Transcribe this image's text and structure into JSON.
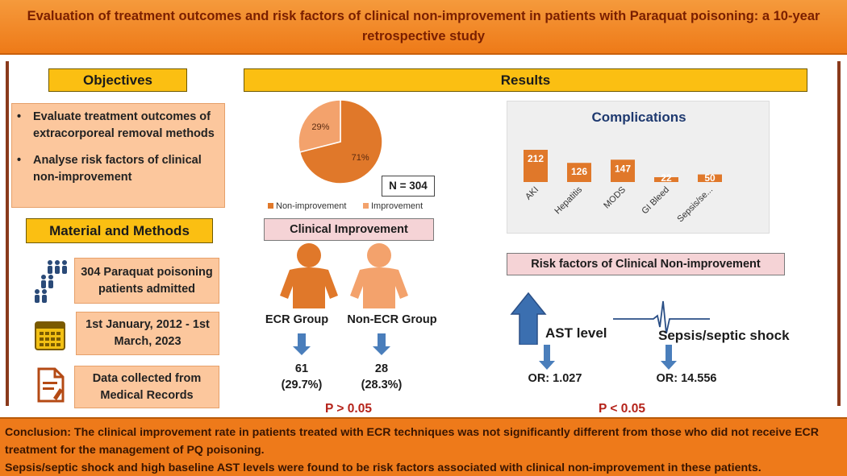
{
  "title": "Evaluation of treatment outcomes and risk factors of clinical non-improvement in patients with Paraquat poisoning: a 10-year retrospective study",
  "objectives": {
    "header": "Objectives",
    "items": [
      "Evaluate treatment outcomes of extracorporeal removal methods",
      "Analyse risk factors of clinical non-improvement"
    ]
  },
  "methods": {
    "header": "Material and Methods",
    "items": [
      {
        "icon": "people-icon",
        "text": "304 Paraquat poisoning patients admitted"
      },
      {
        "icon": "calendar-icon",
        "text": "1st January, 2012 - 1st March, 2023"
      },
      {
        "icon": "document-icon",
        "text": "Data collected from Medical Records"
      }
    ]
  },
  "results": {
    "header": "Results",
    "n_label": "N = 304",
    "clinical_improvement_label": "Clinical Improvement",
    "ecr_group": {
      "label": "ECR Group",
      "count": "61",
      "pct": "(29.7%)"
    },
    "non_ecr_group": {
      "label": "Non-ECR Group",
      "count": "28",
      "pct": "(28.3%)"
    },
    "p_left": "P > 0.05",
    "risk_label": "Risk factors of Clinical Non-improvement",
    "ast": {
      "label": "AST level",
      "or": "OR: 1.027"
    },
    "sepsis": {
      "label": "Sepsis/septic shock",
      "or": "OR: 14.556"
    },
    "p_right": "P < 0.05"
  },
  "colors": {
    "dark_orange": "#e0782a",
    "light_orange": "#f3a26c",
    "arrow_blue": "#4a7ebb",
    "header_yellow": "#fbbf12"
  },
  "chart_data": [
    {
      "type": "pie",
      "categories": [
        "Non-improvement",
        "Improvement"
      ],
      "values": [
        71,
        29
      ],
      "labels": [
        "71%",
        "29%"
      ],
      "legend": "bottom"
    },
    {
      "type": "bar",
      "title": "Complications",
      "categories": [
        "AKI",
        "Hepatitis",
        "MODS",
        "GI Bleed",
        "Sepsis/se..."
      ],
      "values": [
        212,
        126,
        147,
        22,
        50
      ],
      "ylim": [
        0,
        250
      ]
    }
  ],
  "conclusion": {
    "line1": "Conclusion:  The clinical improvement rate in patients treated with ECR techniques was not significantly different from those who did not receive ECR treatment for the management of PQ poisoning.",
    "line2": "Sepsis/septic shock and high baseline AST levels were found to be risk factors associated with clinical non-improvement in these patients."
  }
}
